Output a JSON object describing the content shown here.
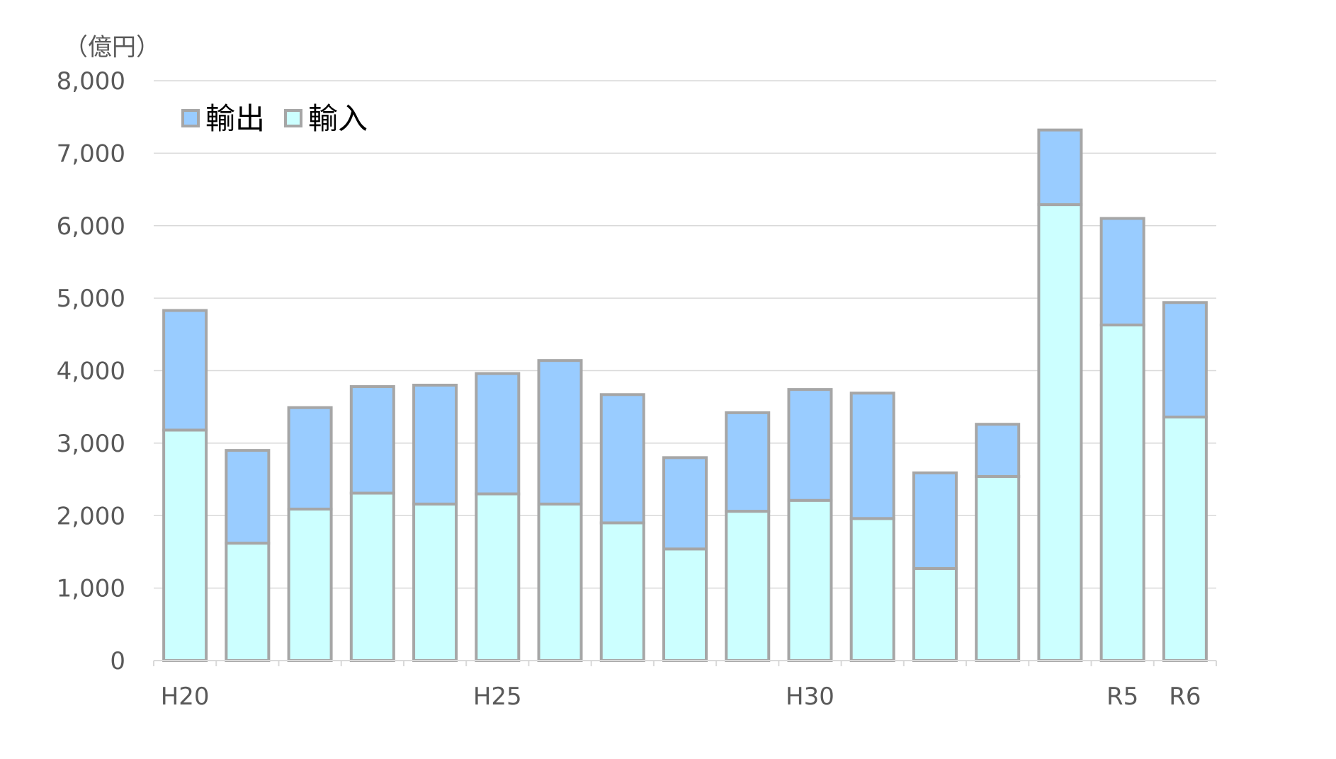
{
  "chart_data": {
    "type": "bar",
    "stacked": true,
    "unit_label": "（億円）",
    "categories": [
      "H20",
      "",
      "",
      "",
      "",
      "H25",
      "",
      "",
      "",
      "",
      "H30",
      "",
      "",
      "",
      "",
      "R5",
      "R6"
    ],
    "series": [
      {
        "name": "輸入",
        "values": [
          3180,
          1620,
          2090,
          2310,
          2160,
          2300,
          2160,
          1900,
          1540,
          2060,
          2210,
          1960,
          1270,
          2540,
          6290,
          4630,
          3360
        ]
      },
      {
        "name": "輸出",
        "values": [
          1650,
          1280,
          1400,
          1470,
          1640,
          1660,
          1980,
          1770,
          1260,
          1360,
          1530,
          1730,
          1320,
          720,
          1030,
          1470,
          1580
        ]
      }
    ],
    "ylim": [
      0,
      8000
    ],
    "yticks": [
      0,
      1000,
      2000,
      3000,
      4000,
      5000,
      6000,
      7000,
      8000
    ],
    "ytick_labels": [
      "0",
      "1,000",
      "2,000",
      "3,000",
      "4,000",
      "5,000",
      "6,000",
      "7,000",
      "8,000"
    ],
    "grid": true,
    "legend_position": "top-left",
    "colors": {
      "輸入": "#ccffff",
      "輸出": "#99ccff",
      "bar_border": "#a6a6a6",
      "grid": "#d9d9d9"
    }
  }
}
